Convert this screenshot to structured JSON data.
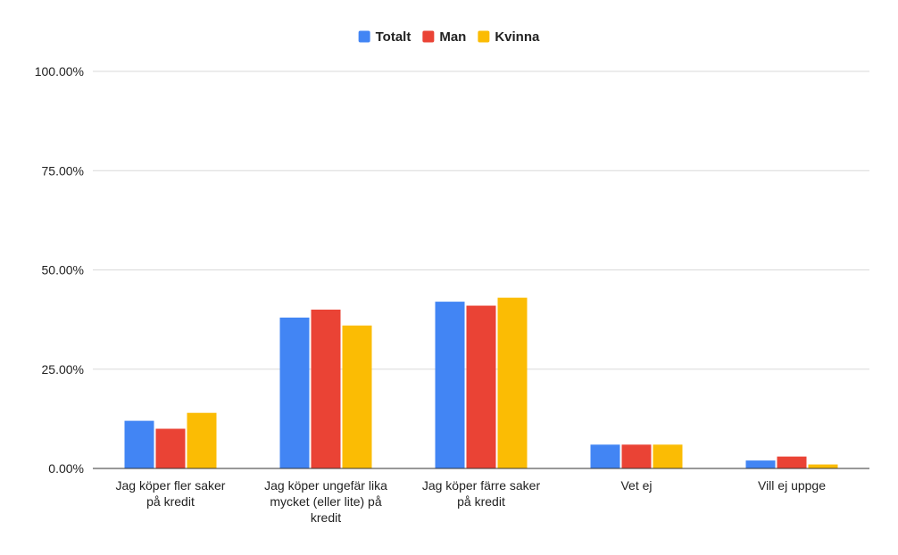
{
  "chart_data": {
    "type": "bar",
    "title": "",
    "xlabel": "",
    "ylabel": "",
    "ylim": [
      0,
      100
    ],
    "y_ticks": [
      "0.00%",
      "25.00%",
      "50.00%",
      "75.00%",
      "100.00%"
    ],
    "y_tick_values": [
      0,
      25,
      50,
      75,
      100
    ],
    "legend_position": "top-center",
    "grid": true,
    "categories": [
      [
        "Jag köper fler saker",
        "på kredit"
      ],
      [
        "Jag köper ungefär lika",
        "mycket (eller lite) på",
        "kredit"
      ],
      [
        "Jag köper färre saker",
        "på kredit"
      ],
      [
        "Vet ej"
      ],
      [
        "Vill ej uppge"
      ]
    ],
    "series": [
      {
        "name": "Totalt",
        "color": "#4285F4",
        "values": [
          12,
          38,
          42,
          6,
          2
        ]
      },
      {
        "name": "Man",
        "color": "#EA4335",
        "values": [
          10,
          40,
          41,
          6,
          3
        ]
      },
      {
        "name": "Kvinna",
        "color": "#FBBC04",
        "values": [
          14,
          36,
          43,
          6,
          1
        ]
      }
    ]
  }
}
